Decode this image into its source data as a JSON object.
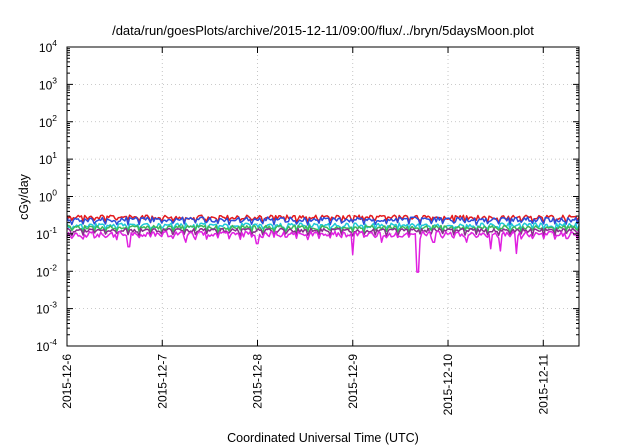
{
  "chart_data": {
    "type": "line",
    "title": "/data/run/goesPlots/archive/2015-12-11/09:00/flux/../bryn/5daysMoon.plot",
    "xlabel": "Coordinated Universal Time (UTC)",
    "ylabel": "cGy/day",
    "y_scale": "log",
    "ylim": [
      0.0001,
      10000
    ],
    "x_start": "2015-12-06",
    "x_end": "2015-12-11 09:00",
    "xlim_days": [
      0,
      5.375
    ],
    "x_ticks": [
      {
        "label": "2015-12-6",
        "day": 0
      },
      {
        "label": "2015-12-7",
        "day": 1
      },
      {
        "label": "2015-12-8",
        "day": 2
      },
      {
        "label": "2015-12-9",
        "day": 3
      },
      {
        "label": "2015-12-10",
        "day": 4
      },
      {
        "label": "2015-12-11",
        "day": 5
      }
    ],
    "y_ticks": [
      {
        "base": "10",
        "exp": "-4",
        "value": 0.0001
      },
      {
        "base": "10",
        "exp": "-3",
        "value": 0.001
      },
      {
        "base": "10",
        "exp": "-2",
        "value": 0.01
      },
      {
        "base": "10",
        "exp": "-1",
        "value": 0.1
      },
      {
        "base": "10",
        "exp": "0",
        "value": 1
      },
      {
        "base": "10",
        "exp": "1",
        "value": 10
      },
      {
        "base": "10",
        "exp": "2",
        "value": 100
      },
      {
        "base": "10",
        "exp": "3",
        "value": 1000
      },
      {
        "base": "10",
        "exp": "4",
        "value": 10000
      }
    ],
    "grid": true,
    "legend": "none",
    "series": [
      {
        "color": "#e41a1c",
        "base": 0.28,
        "variation": 0.06,
        "dips": [],
        "points": 320
      },
      {
        "color": "#2b4bd8",
        "base": 0.245,
        "variation": 0.06,
        "dips": [],
        "points": 320
      },
      {
        "color": "#1ec8d8",
        "base": 0.17,
        "variation": 0.04,
        "dips": [],
        "points": 320
      },
      {
        "color": "#3db85a",
        "base": 0.15,
        "variation": 0.03,
        "dips": [],
        "points": 320
      },
      {
        "color": "#8b2a8e",
        "base": 0.125,
        "variation": 0.025,
        "dips": [],
        "points": 320
      },
      {
        "color": "#e020e0",
        "base": 0.1,
        "variation": 0.03,
        "dips": [
          {
            "day": 0.65,
            "value": 0.045
          },
          {
            "day": 1.25,
            "value": 0.06
          },
          {
            "day": 2.0,
            "value": 0.055
          },
          {
            "day": 3.0,
            "value": 0.028
          },
          {
            "day": 3.3,
            "value": 0.06
          },
          {
            "day": 3.68,
            "value": 0.0095
          },
          {
            "day": 3.85,
            "value": 0.06
          },
          {
            "day": 4.2,
            "value": 0.06
          },
          {
            "day": 4.45,
            "value": 0.04
          },
          {
            "day": 4.55,
            "value": 0.035
          },
          {
            "day": 4.72,
            "value": 0.03
          },
          {
            "day": 5.25,
            "value": 0.075
          }
        ],
        "points": 320
      }
    ]
  }
}
